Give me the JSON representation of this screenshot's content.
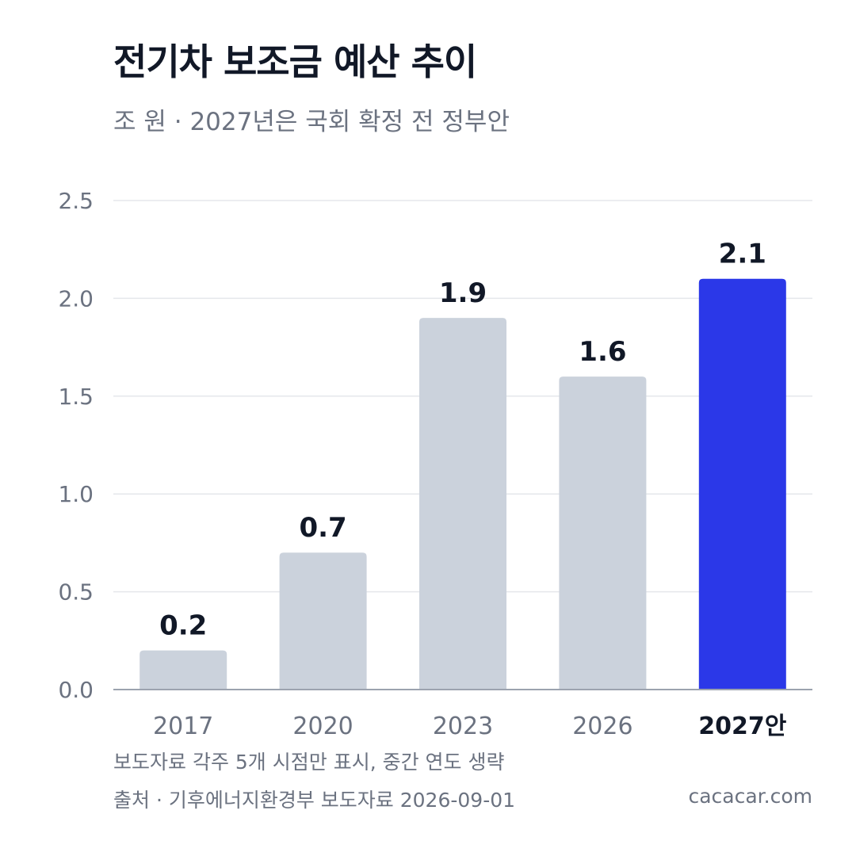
{
  "title": "전기차 보조금 예산 추이",
  "subtitle": "조 원 · 2027년은 국회 확정 전 정부안",
  "note": "보도자료 각주 5개 시점만 표시, 중간 연도 생략",
  "source": "출처 · 기후에너지환경부 보도자료 2026-09-01",
  "site": "cacacar.com",
  "colors": {
    "bar_default": "#cbd2dc",
    "bar_highlight": "#2b38e8",
    "grid": "#e5e7eb",
    "axis": "#9ca3af",
    "text_dark": "#111827",
    "text_muted": "#6b7280"
  },
  "chart_data": {
    "type": "bar",
    "categories": [
      "2017",
      "2020",
      "2023",
      "2026",
      "2027안"
    ],
    "values": [
      0.2,
      0.7,
      1.9,
      1.6,
      2.1
    ],
    "value_labels": [
      "0.2",
      "0.7",
      "1.9",
      "1.6",
      "2.1"
    ],
    "highlight_index": 4,
    "ylim": [
      0,
      2.5
    ],
    "yticks": [
      0.0,
      0.5,
      1.0,
      1.5,
      2.0,
      2.5
    ],
    "ytick_labels": [
      "0.0",
      "0.5",
      "1.0",
      "1.5",
      "2.0",
      "2.5"
    ],
    "grid": true,
    "title": "전기차 보조금 예산 추이",
    "xlabel": "",
    "ylabel": ""
  }
}
